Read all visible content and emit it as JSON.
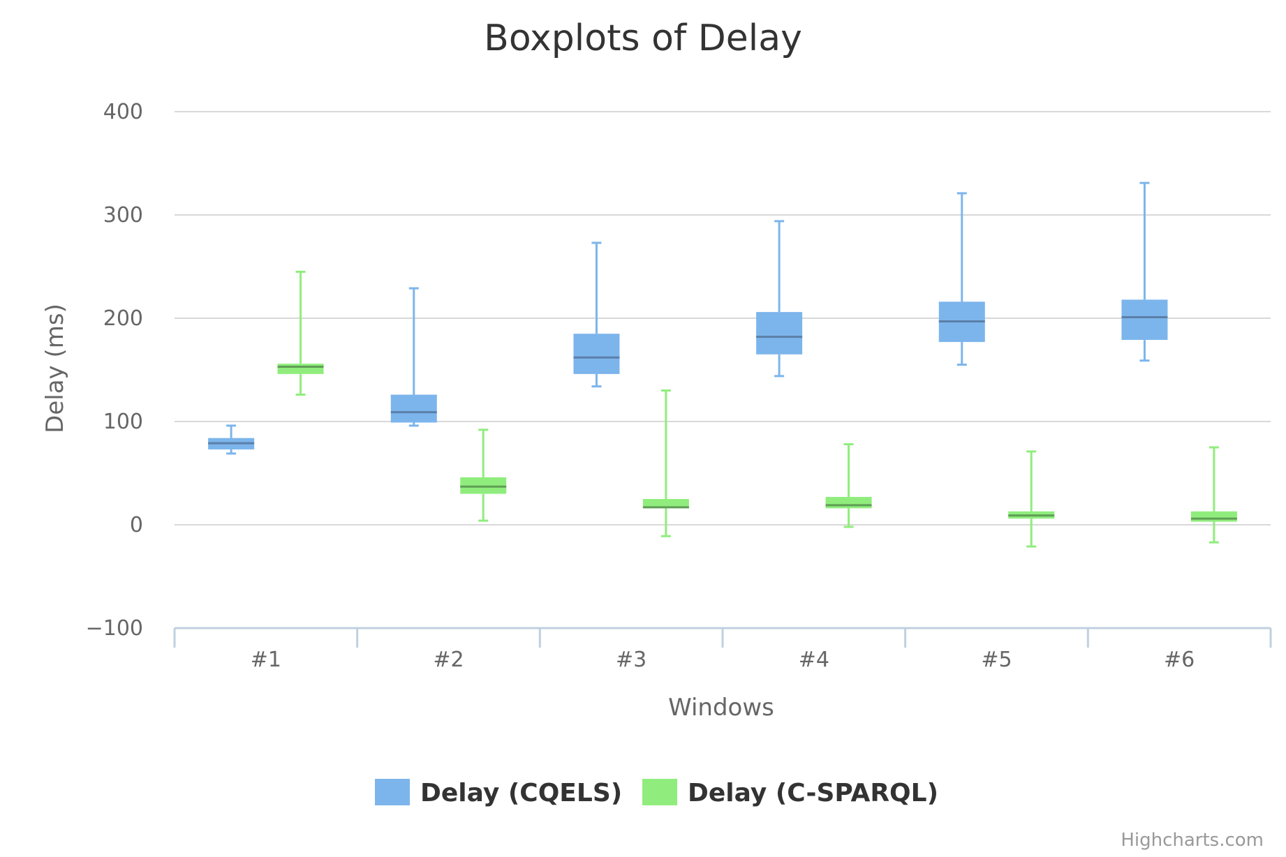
{
  "chart_data": {
    "type": "boxplot",
    "title": "Boxplots of Delay",
    "xlabel": "Windows",
    "ylabel": "Delay (ms)",
    "categories": [
      "#1",
      "#2",
      "#3",
      "#4",
      "#5",
      "#6"
    ],
    "ylim": [
      -100,
      400
    ],
    "yticks": [
      -100,
      0,
      100,
      200,
      300,
      400
    ],
    "grid": true,
    "legend_position": "bottom-center",
    "series": [
      {
        "name": "Delay (CQELS)",
        "color": "#7cb5ec",
        "median_color": "#5b7fa8",
        "boxes": [
          {
            "low": 69,
            "q1": 73,
            "median": 79,
            "q3": 84,
            "high": 96
          },
          {
            "low": 96,
            "q1": 99,
            "median": 109,
            "q3": 126,
            "high": 229
          },
          {
            "low": 134,
            "q1": 146,
            "median": 162,
            "q3": 185,
            "high": 273
          },
          {
            "low": 144,
            "q1": 165,
            "median": 182,
            "q3": 206,
            "high": 294
          },
          {
            "low": 155,
            "q1": 177,
            "median": 197,
            "q3": 216,
            "high": 321
          },
          {
            "low": 159,
            "q1": 179,
            "median": 201,
            "q3": 218,
            "high": 331
          }
        ]
      },
      {
        "name": "Delay (C-SPARQL)",
        "color": "#90ed7d",
        "median_color": "#5f9e55",
        "boxes": [
          {
            "low": 126,
            "q1": 146,
            "median": 153,
            "q3": 156,
            "high": 245
          },
          {
            "low": 4,
            "q1": 30,
            "median": 37,
            "q3": 46,
            "high": 92
          },
          {
            "low": -11,
            "q1": 16,
            "median": 17,
            "q3": 25,
            "high": 130
          },
          {
            "low": -2,
            "q1": 16,
            "median": 19,
            "q3": 27,
            "high": 78
          },
          {
            "low": -21,
            "q1": 6,
            "median": 9,
            "q3": 13,
            "high": 71
          },
          {
            "low": -17,
            "q1": 3,
            "median": 6,
            "q3": 13,
            "high": 75
          }
        ]
      }
    ]
  },
  "credits": "Highcharts.com"
}
